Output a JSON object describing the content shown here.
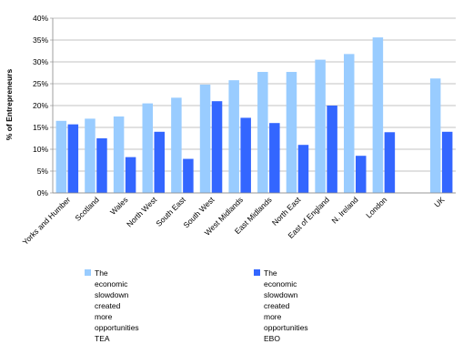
{
  "chart_data": {
    "type": "bar",
    "ylabel": "% of Entrepreneurs",
    "categories": [
      "Yorks and Humber",
      "Scotland",
      "Wales",
      "North West",
      "South East",
      "South West",
      "West Midlands",
      "East Midlands",
      "North East",
      "East of England",
      "N. Ireland",
      "London",
      "",
      "UK"
    ],
    "y_tick_labels": [
      "0%",
      "5%",
      "10%",
      "15%",
      "20%",
      "25%",
      "30%",
      "35%",
      "40%"
    ],
    "ylim": [
      0,
      40
    ],
    "grid": true,
    "legend_position": "bottom",
    "series": [
      {
        "name": "The economic slowdown created more opportunities TEA",
        "legend_lines": [
          "The economic slowdown",
          "created more opportunities TEA"
        ],
        "color": "#99ccff",
        "values": [
          16.5,
          17.0,
          17.5,
          20.5,
          21.8,
          24.8,
          25.8,
          27.7,
          27.7,
          30.5,
          31.8,
          35.6,
          null,
          26.2
        ]
      },
      {
        "name": "The economic slowdown created more opportunities EBO",
        "legend_lines": [
          "The economic slowdown",
          "created more opportunities EBO"
        ],
        "color": "#3366ff",
        "values": [
          15.7,
          12.5,
          8.2,
          14.0,
          7.8,
          21.0,
          17.2,
          16.0,
          11.0,
          20.0,
          8.5,
          13.9,
          null,
          14.0
        ]
      }
    ]
  }
}
